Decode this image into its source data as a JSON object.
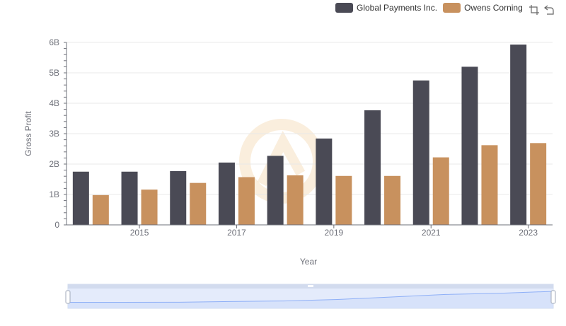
{
  "colors": {
    "global_payments": "#4a4a55",
    "owens_corning": "#c8915e",
    "grid": "#e8e8e8",
    "axis": "#6e7079",
    "text": "#6e7079",
    "zoom_fill": "#dde6fa",
    "zoom_border": "#d2dbee",
    "zoom_line": "#8fb0f7",
    "watermark": "#f3d9b4"
  },
  "legend": {
    "items": [
      {
        "label": "Global Payments Inc.",
        "color": "#4a4a55"
      },
      {
        "label": "Owens Corning",
        "color": "#c8915e"
      }
    ]
  },
  "toolbox": {
    "icons": [
      "zoom-icon",
      "restore-icon"
    ]
  },
  "chart_data": {
    "type": "bar",
    "x": [
      2014,
      2015,
      2016,
      2017,
      2018,
      2019,
      2020,
      2021,
      2022,
      2023
    ],
    "x_tick_labels": [
      "2015",
      "2017",
      "2019",
      "2021",
      "2023"
    ],
    "series": [
      {
        "name": "Global Payments Inc.",
        "values": [
          1.75,
          1.75,
          1.77,
          2.05,
          2.27,
          2.84,
          3.77,
          4.75,
          5.2,
          5.93
        ]
      },
      {
        "name": "Owens Corning",
        "values": [
          0.98,
          1.16,
          1.38,
          1.57,
          1.63,
          1.61,
          1.61,
          2.22,
          2.62,
          2.69
        ]
      }
    ],
    "ylim": [
      0,
      6
    ],
    "yticks": [
      {
        "value": 0,
        "label": "0"
      },
      {
        "value": 1,
        "label": "1B"
      },
      {
        "value": 2,
        "label": "2B"
      },
      {
        "value": 3,
        "label": "3B"
      },
      {
        "value": 4,
        "label": "4B"
      },
      {
        "value": 5,
        "label": "5B"
      },
      {
        "value": 6,
        "label": "6B"
      }
    ],
    "xlabel": "Year",
    "ylabel": "Gross Profit",
    "grid": true,
    "legend_position": "top-right",
    "datazoom": {
      "start_percent": 0,
      "end_percent": 100
    }
  }
}
